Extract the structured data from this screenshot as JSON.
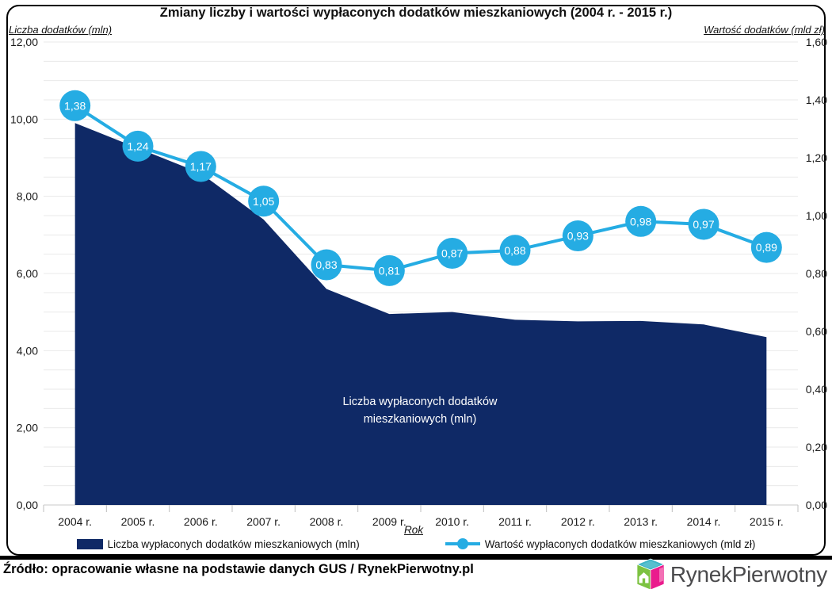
{
  "title": "Zmiany liczby i wartości wypłaconych dodatków mieszkaniowych (2004 r. - 2015 r.)",
  "source": "Źródło: opracowanie własne na podstawie danych GUS / RynekPierwotny.pl",
  "logo": {
    "text": "RynekPierwotny"
  },
  "colors": {
    "area": "#0F2966",
    "line": "#25ACE3",
    "grid": "#E9E9E9",
    "grid_base": "#C9C9C9",
    "tick": "#BFBFBF",
    "label": "#1A1A1A",
    "marker_label": "#FFFFFF",
    "cube_top": "#3EB4C6",
    "cube_left": "#7CC241",
    "cube_right": "#EA1C8D",
    "logo_text": "#4B4B4D"
  },
  "chart_data": {
    "type": "combo (area + line)",
    "categories": [
      "2004 r.",
      "2005 r.",
      "2006 r.",
      "2007 r.",
      "2008 r.",
      "2009 r.",
      "2010 r.",
      "2011 r.",
      "2012 r.",
      "2013 r.",
      "2014 r.",
      "2015 r."
    ],
    "x_label": "Rok",
    "grid": "horizontal light gridlines every 0.5 (left axis); category tick marks on x axis",
    "legend_position": "bottom",
    "left_axis": {
      "label": "Liczba dodatków (mln)",
      "tick_labels": [
        "12,00",
        "10,00",
        "8,00",
        "6,00",
        "4,00",
        "2,00",
        "0,00"
      ],
      "lim": [
        0,
        12
      ]
    },
    "right_axis": {
      "label": "Wartość dodatków (mld zł)",
      "tick_labels": [
        "1,60",
        "1,40",
        "1,20",
        "1,00",
        "0,80",
        "0,60",
        "0,40",
        "0,20",
        "0,00"
      ],
      "lim": [
        0,
        1.6
      ]
    },
    "area_inner_label": [
      "Liczba wypłaconych dodatków",
      "mieszkaniowych (mln)"
    ],
    "series": [
      {
        "name": "Liczba wypłaconych dodatków mieszkaniowych (mln)",
        "type": "area",
        "axis": "left",
        "values": [
          9.9,
          9.25,
          8.6,
          7.4,
          5.6,
          4.95,
          5.0,
          4.8,
          4.76,
          4.77,
          4.68,
          4.35
        ]
      },
      {
        "name": "Wartość wypłaconych dodatków mieszkaniowych (mld zł)",
        "type": "line",
        "axis": "right",
        "values": [
          1.38,
          1.24,
          1.17,
          1.05,
          0.83,
          0.81,
          0.87,
          0.88,
          0.93,
          0.98,
          0.97,
          0.89
        ],
        "labels": [
          "1,38",
          "1,24",
          "1,17",
          "1,05",
          "0,83",
          "0,81",
          "0,87",
          "0,88",
          "0,93",
          "0,98",
          "0,97",
          "0,89"
        ]
      }
    ]
  }
}
